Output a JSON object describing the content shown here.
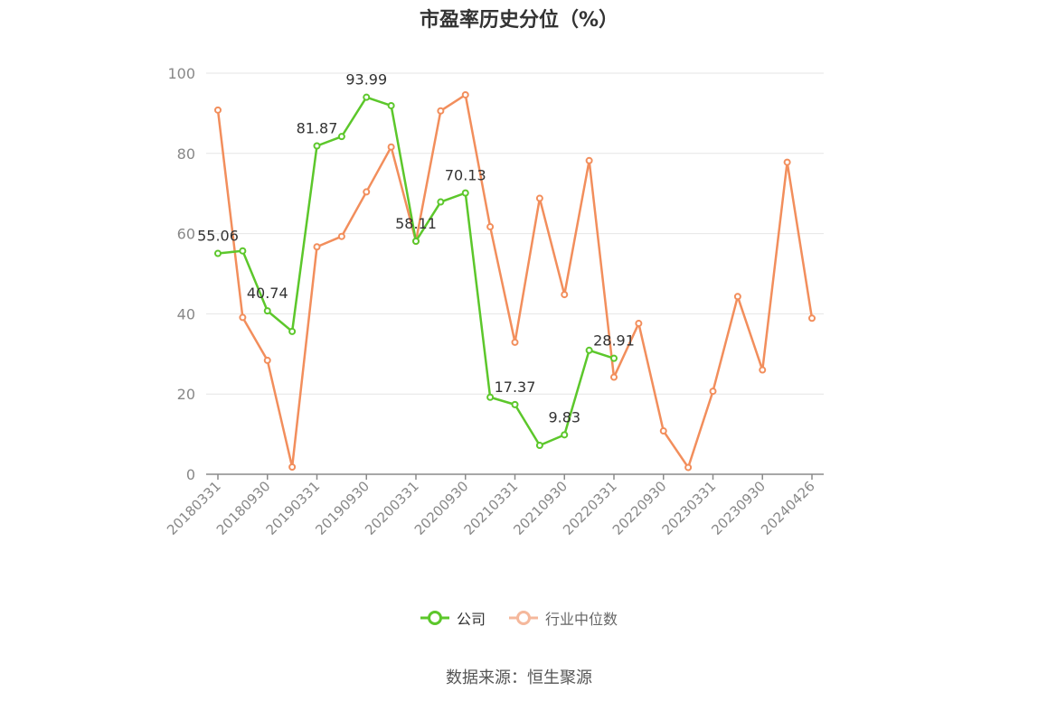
{
  "chart_data": {
    "type": "line",
    "title": "市盈率历史分位（%）",
    "source": "数据来源：恒生聚源",
    "ylim": [
      0,
      100
    ],
    "yticks": [
      0,
      20,
      40,
      60,
      80,
      100
    ],
    "grid": true,
    "legend_position": "bottom",
    "x_tick_labels": [
      "20180331",
      "20180930",
      "20190331",
      "20190930",
      "20200331",
      "20200930",
      "20210331",
      "20210930",
      "20220331",
      "20220930",
      "20230331",
      "20230930",
      "20240426"
    ],
    "x": [
      "20180331",
      "20180630",
      "20180930",
      "20181231",
      "20190331",
      "20190630",
      "20190930",
      "20191231",
      "20200331",
      "20200630",
      "20200930",
      "20201231",
      "20210331",
      "20210630",
      "20210930",
      "20211231",
      "20220331",
      "20220630",
      "20220930",
      "20221231",
      "20230331",
      "20230630",
      "20230930",
      "20231231",
      "20240426"
    ],
    "series": [
      {
        "name": "公司",
        "color": "#5cc72b",
        "values": [
          55.06,
          55.7,
          40.74,
          35.6,
          81.87,
          84.2,
          93.99,
          91.9,
          58.11,
          67.9,
          70.13,
          19.2,
          17.37,
          7.2,
          9.83,
          30.9,
          28.91,
          null,
          null,
          null,
          null,
          null,
          null,
          null,
          null
        ],
        "labels": [
          {
            "index": 0,
            "text": "55.06"
          },
          {
            "index": 2,
            "text": "40.74"
          },
          {
            "index": 4,
            "text": "81.87"
          },
          {
            "index": 6,
            "text": "93.99"
          },
          {
            "index": 8,
            "text": "58.11"
          },
          {
            "index": 10,
            "text": "70.13"
          },
          {
            "index": 12,
            "text": "17.37"
          },
          {
            "index": 14,
            "text": "9.83"
          },
          {
            "index": 16,
            "text": "28.91"
          }
        ]
      },
      {
        "name": "行业中位数",
        "color": "#f28e5c",
        "values": [
          90.8,
          39.1,
          28.4,
          1.8,
          56.7,
          59.3,
          70.4,
          81.6,
          58.1,
          90.6,
          94.6,
          61.7,
          32.9,
          68.8,
          44.8,
          78.2,
          24.2,
          37.6,
          10.8,
          1.7,
          20.7,
          44.3,
          26.0,
          77.8,
          38.9
        ],
        "labels": []
      }
    ]
  }
}
